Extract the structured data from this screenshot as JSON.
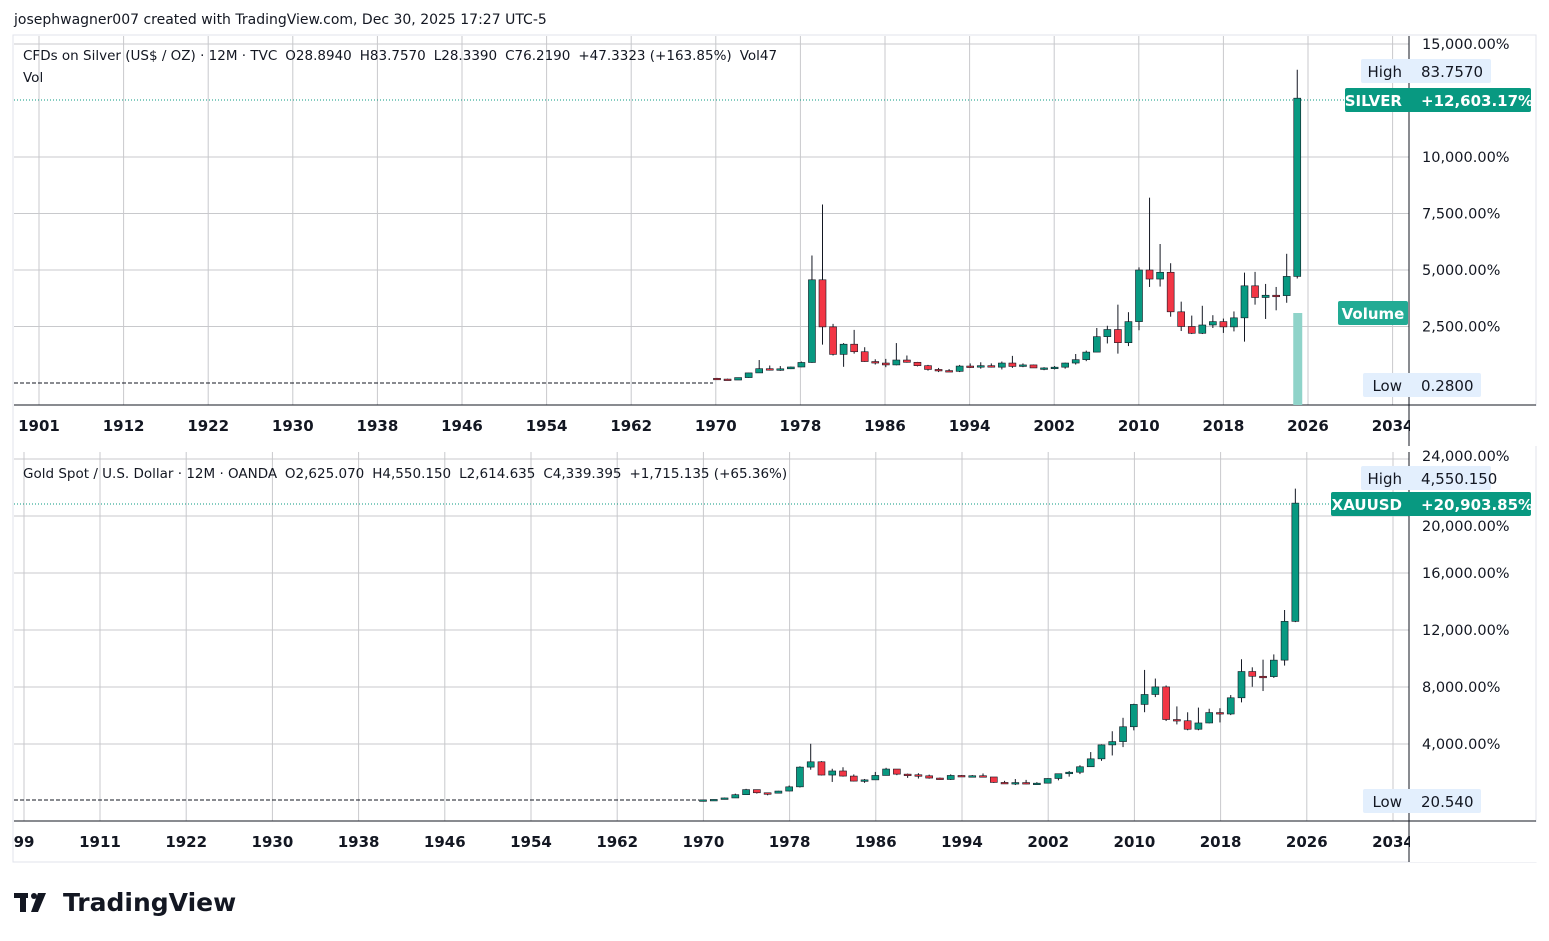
{
  "header": {
    "text": "josephwagner007 created with TradingView.com, Dec 30, 2025 17:27 UTC-5"
  },
  "footer": {
    "logo_text": "TradingView"
  },
  "colors": {
    "up": "#089981",
    "down": "#f23645",
    "volume": "#8fd3c9",
    "grid": "#c8c9cc",
    "label_bg": "#e3effd",
    "badge": "#089981"
  },
  "chart_data": [
    {
      "type": "candlestick",
      "title": "CFDs on Silver (US$ / OZ) · 12M · TVC",
      "legend": {
        "open": "O28.8940",
        "high": "H83.7570",
        "low": "L28.3390",
        "close": "C76.2190",
        "change": "+47.3323 (+163.85%)",
        "volume": "Vol47",
        "vol_label": "Vol"
      },
      "symbol_badge": "SILVER",
      "current_value": "+12,603.17%",
      "high_label": "High",
      "high_value": "83.7570",
      "low_label": "Low",
      "low_value": "0.2800",
      "volume_badge": "Volume",
      "scale": "percent",
      "base_price": 0.6,
      "ylim": [
        0,
        15500
      ],
      "y_ticks": [
        "15,000.00%",
        "10,000.00%",
        "7,500.00%",
        "5,000.00%",
        "2,500.00%"
      ],
      "y_tick_values": [
        15000,
        10000,
        7500,
        5000,
        2500
      ],
      "x_ticks": [
        "1901",
        "1912",
        "1922",
        "1930",
        "1938",
        "1946",
        "1954",
        "1962",
        "1970",
        "1978",
        "1986",
        "1994",
        "2002",
        "2010",
        "2018",
        "2026",
        "2034"
      ],
      "pre_series_flat_from": 1901,
      "candles_start_year": 1970,
      "ohlc": [
        [
          1.85,
          1.95,
          1.57,
          1.64
        ],
        [
          1.64,
          1.75,
          1.3,
          1.39
        ],
        [
          1.39,
          2.05,
          1.39,
          2.04
        ],
        [
          2.04,
          3.3,
          1.96,
          3.28
        ],
        [
          3.28,
          6.7,
          3.27,
          4.4
        ],
        [
          4.4,
          5.25,
          3.9,
          4.2
        ],
        [
          4.2,
          5.1,
          3.83,
          4.37
        ],
        [
          4.37,
          4.95,
          4.3,
          4.85
        ],
        [
          4.85,
          6.3,
          4.8,
          6.05
        ],
        [
          6.05,
          34.45,
          5.95,
          28.0
        ],
        [
          28.0,
          48.0,
          10.8,
          15.5
        ],
        [
          15.5,
          16.3,
          7.9,
          8.2
        ],
        [
          8.2,
          11.2,
          4.9,
          10.9
        ],
        [
          10.9,
          14.7,
          8.4,
          8.9
        ],
        [
          8.9,
          10.1,
          6.2,
          6.3
        ],
        [
          6.3,
          6.9,
          5.5,
          5.9
        ],
        [
          5.9,
          7.0,
          4.8,
          5.4
        ],
        [
          5.4,
          11.2,
          5.3,
          6.7
        ],
        [
          6.7,
          7.9,
          6.0,
          6.1
        ],
        [
          6.1,
          6.2,
          5.0,
          5.2
        ],
        [
          5.2,
          5.4,
          3.9,
          4.2
        ],
        [
          4.2,
          4.6,
          3.5,
          3.9
        ],
        [
          3.9,
          4.3,
          3.6,
          3.7
        ],
        [
          3.7,
          5.4,
          3.5,
          5.1
        ],
        [
          5.1,
          5.8,
          4.6,
          4.9
        ],
        [
          4.9,
          6.1,
          4.4,
          5.2
        ],
        [
          5.2,
          5.8,
          4.7,
          4.8
        ],
        [
          4.8,
          6.3,
          4.2,
          5.9
        ],
        [
          5.9,
          7.8,
          4.6,
          5.0
        ],
        [
          5.0,
          5.8,
          4.8,
          5.4
        ],
        [
          5.4,
          5.5,
          4.6,
          4.6
        ],
        [
          4.6,
          4.8,
          4.0,
          4.6
        ],
        [
          4.6,
          5.1,
          4.2,
          4.8
        ],
        [
          4.8,
          6.0,
          4.4,
          5.9
        ],
        [
          5.9,
          8.3,
          5.5,
          6.8
        ],
        [
          6.8,
          9.2,
          6.4,
          8.8
        ],
        [
          8.8,
          15.2,
          8.8,
          12.9
        ],
        [
          12.9,
          15.8,
          11.1,
          14.8
        ],
        [
          14.8,
          21.4,
          8.4,
          11.3
        ],
        [
          11.3,
          19.4,
          10.4,
          16.9
        ],
        [
          16.9,
          31.3,
          14.6,
          30.6
        ],
        [
          30.6,
          49.8,
          26.1,
          28.2
        ],
        [
          28.2,
          37.5,
          26.2,
          30.0
        ],
        [
          30.0,
          32.4,
          18.2,
          19.5
        ],
        [
          19.5,
          22.2,
          14.4,
          15.6
        ],
        [
          15.6,
          18.5,
          13.6,
          13.8
        ],
        [
          13.8,
          21.1,
          13.6,
          16.0
        ],
        [
          16.0,
          18.6,
          15.2,
          16.9
        ],
        [
          16.9,
          17.7,
          13.9,
          15.5
        ],
        [
          15.5,
          19.6,
          14.3,
          17.9
        ],
        [
          17.9,
          29.9,
          11.6,
          26.4
        ],
        [
          26.4,
          30.1,
          21.4,
          23.3
        ],
        [
          23.3,
          26.9,
          17.6,
          23.9
        ],
        [
          23.9,
          26.1,
          19.9,
          23.8
        ],
        [
          23.8,
          34.9,
          21.9,
          28.9
        ],
        [
          28.894,
          83.757,
          28.339,
          76.219
        ]
      ],
      "volume_last_year": 47
    },
    {
      "type": "candlestick",
      "title": "Gold Spot / U.S. Dollar · 12M · OANDA",
      "legend": {
        "open": "O2,625.070",
        "high": "H4,550.150",
        "low": "L2,614.635",
        "close": "C4,339.395",
        "change": "+1,715.135 (+65.36%)"
      },
      "symbol_badge": "XAUUSD",
      "current_value": "+20,903.85%",
      "high_label": "High",
      "high_value": "4,550.150",
      "low_label": "Low",
      "low_value": "20.540",
      "scale": "percent",
      "base_price": 20.66,
      "ylim": [
        0,
        24500
      ],
      "y_ticks": [
        "24,000.00%",
        "20,000.00%",
        "16,000.00%",
        "12,000.00%",
        "8,000.00%",
        "4,000.00%"
      ],
      "y_tick_values": [
        24000,
        20000,
        16000,
        12000,
        8000,
        4000
      ],
      "x_ticks": [
        "99",
        "1911",
        "1922",
        "1930",
        "1938",
        "1946",
        "1954",
        "1962",
        "1970",
        "1978",
        "1986",
        "1994",
        "2002",
        "2010",
        "2018",
        "2026",
        "2034"
      ],
      "candles_start_year": 1970,
      "ohlc": [
        [
          35.2,
          39.2,
          34.8,
          37.4
        ],
        [
          37.4,
          44.0,
          37.3,
          43.6
        ],
        [
          43.6,
          70.0,
          43.6,
          64.9
        ],
        [
          64.9,
          127,
          64,
          112
        ],
        [
          112,
          197,
          112,
          186
        ],
        [
          186,
          186,
          128,
          140
        ],
        [
          140,
          140,
          103,
          134
        ],
        [
          134,
          168,
          130,
          165
        ],
        [
          165,
          245,
          161,
          226
        ],
        [
          226,
          524,
          216,
          512
        ],
        [
          512,
          850,
          474,
          589
        ],
        [
          589,
          599,
          391,
          397
        ],
        [
          397,
          488,
          297,
          456
        ],
        [
          456,
          510,
          374,
          382
        ],
        [
          382,
          406,
          303,
          309
        ],
        [
          309,
          340,
          284,
          327
        ],
        [
          327,
          442,
          326,
          391
        ],
        [
          391,
          502,
          391,
          484
        ],
        [
          484,
          484,
          395,
          410
        ],
        [
          410,
          418,
          356,
          401
        ],
        [
          401,
          424,
          346,
          386
        ],
        [
          386,
          403,
          344,
          353
        ],
        [
          353,
          360,
          330,
          333
        ],
        [
          333,
          407,
          326,
          391
        ],
        [
          391,
          397,
          370,
          383
        ],
        [
          383,
          397,
          372,
          387
        ],
        [
          387,
          420,
          367,
          369
        ],
        [
          369,
          369,
          283,
          290
        ],
        [
          290,
          313,
          273,
          288
        ],
        [
          288,
          339,
          252,
          288
        ],
        [
          288,
          327,
          264,
          273
        ],
        [
          273,
          294,
          255,
          279
        ],
        [
          279,
          350,
          277,
          347
        ],
        [
          347,
          417,
          320,
          416
        ],
        [
          416,
          456,
          374,
          438
        ],
        [
          438,
          539,
          411,
          517
        ],
        [
          517,
          730,
          517,
          632
        ],
        [
          632,
          842,
          603,
          834
        ],
        [
          834,
          1032,
          681,
          882
        ],
        [
          882,
          1227,
          802,
          1097
        ],
        [
          1097,
          1431,
          1045,
          1421
        ],
        [
          1421,
          1921,
          1308,
          1565
        ],
        [
          1565,
          1796,
          1527,
          1675
        ],
        [
          1675,
          1696,
          1180,
          1202
        ],
        [
          1202,
          1392,
          1131,
          1184
        ],
        [
          1184,
          1307,
          1046,
          1061
        ],
        [
          1061,
          1375,
          1046,
          1152
        ],
        [
          1152,
          1358,
          1146,
          1303
        ],
        [
          1303,
          1366,
          1160,
          1282
        ],
        [
          1282,
          1557,
          1266,
          1517
        ],
        [
          1517,
          2075,
          1451,
          1898
        ],
        [
          1898,
          1959,
          1677,
          1829
        ],
        [
          1829,
          2070,
          1615,
          1824
        ],
        [
          1824,
          2146,
          1805,
          2063
        ],
        [
          2063,
          2790,
          1984,
          2625
        ],
        [
          2625.07,
          4550.15,
          2614.635,
          4339.395
        ]
      ]
    }
  ]
}
